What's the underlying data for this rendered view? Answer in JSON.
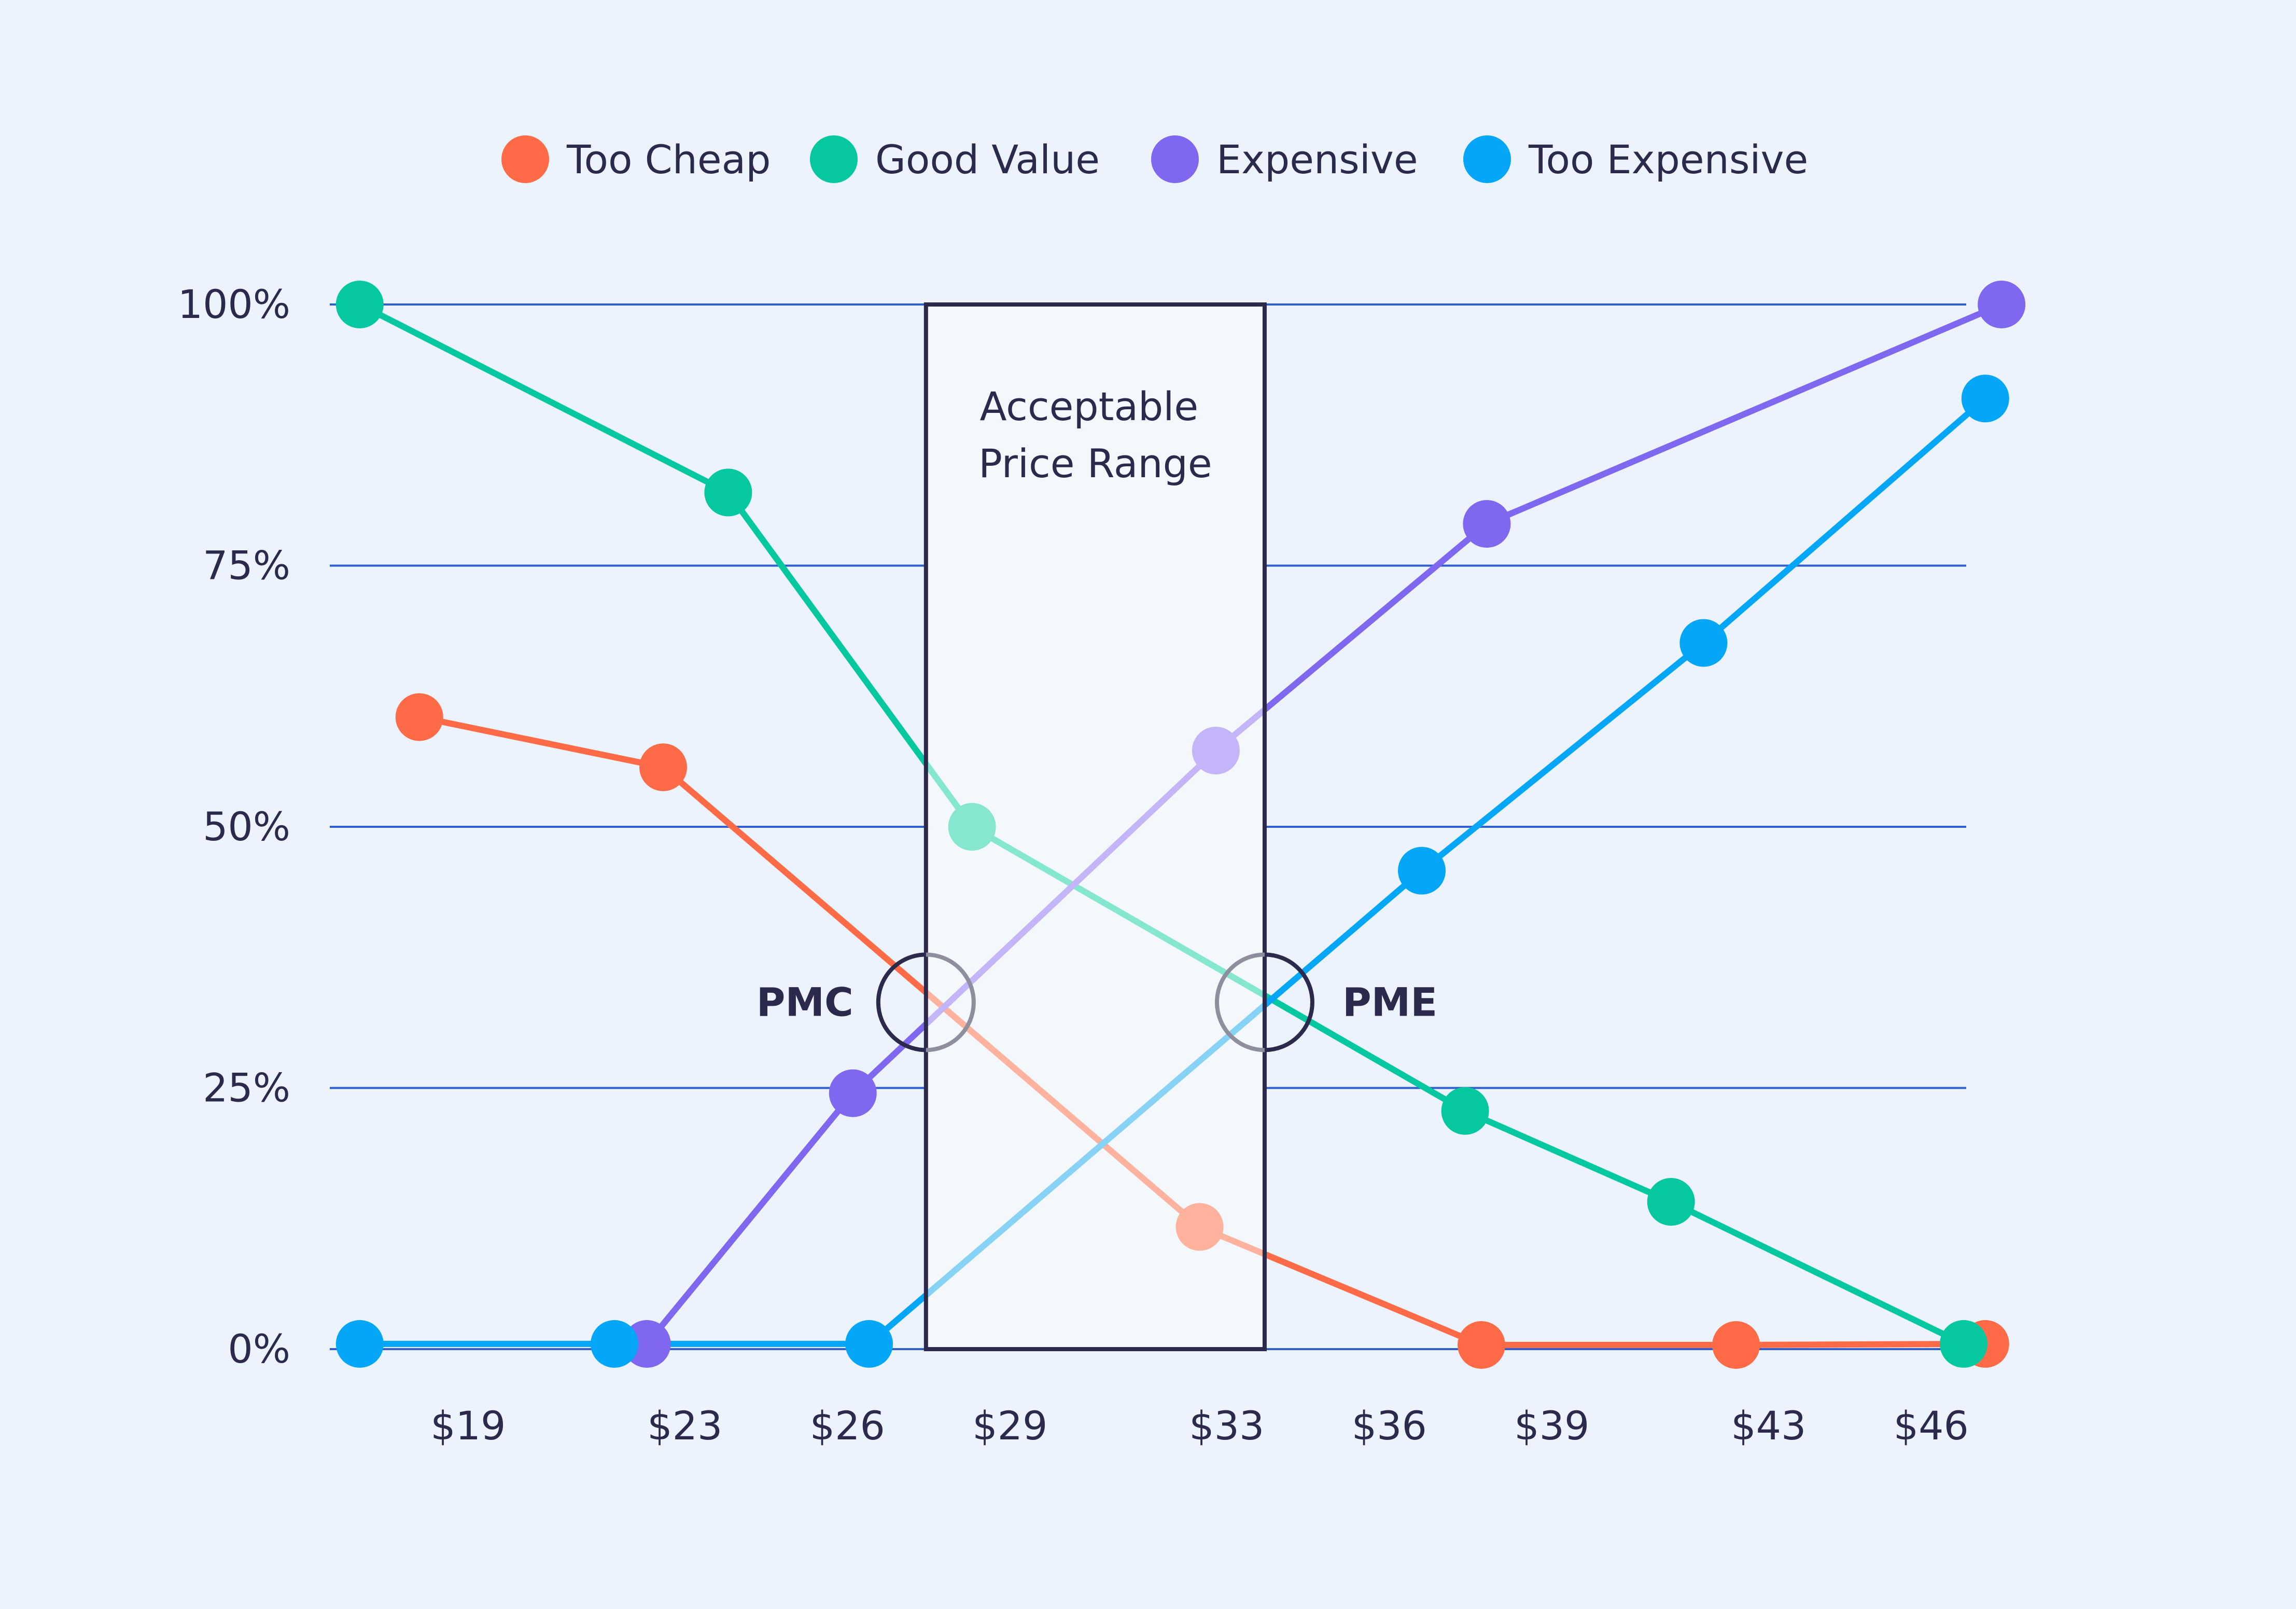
{
  "chart_data": {
    "type": "line",
    "title": "",
    "xlabel": "",
    "ylabel": "",
    "x_tick_labels": [
      "$19",
      "$23",
      "$26",
      "$29",
      "$33",
      "$36",
      "$39",
      "$43",
      "$46"
    ],
    "x_tick_values": [
      19,
      23,
      26,
      29,
      33,
      36,
      39,
      43,
      46
    ],
    "y_tick_labels": [
      "0%",
      "25%",
      "50%",
      "75%",
      "100%"
    ],
    "y_tick_values": [
      0,
      25,
      50,
      75,
      100
    ],
    "xlim": [
      16.6,
      46.6
    ],
    "ylim": [
      0,
      100
    ],
    "grid": true,
    "legend_position": "top-center",
    "series": [
      {
        "name": "Too Cheap",
        "color": "#FF6B47",
        "faded_color": "#FFB39E",
        "points": [
          {
            "x": 18.1,
            "y": 60.5
          },
          {
            "x": 22.6,
            "y": 55.7
          },
          {
            "x": 32.5,
            "y": 11.7
          },
          {
            "x": 37.7,
            "y": 0.4
          },
          {
            "x": 42.4,
            "y": 0.4
          },
          {
            "x": 47.0,
            "y": 0.5
          }
        ]
      },
      {
        "name": "Good Value",
        "color": "#05C7A0",
        "faded_color": "#86E7D1",
        "points": [
          {
            "x": 17.0,
            "y": 100.0
          },
          {
            "x": 23.8,
            "y": 82.0
          },
          {
            "x": 28.3,
            "y": 50.0
          },
          {
            "x": 37.4,
            "y": 22.8
          },
          {
            "x": 41.2,
            "y": 14.1
          },
          {
            "x": 46.6,
            "y": 0.5
          }
        ]
      },
      {
        "name": "Expensive",
        "color": "#7F67F0",
        "faded_color": "#C3B5F7",
        "points": [
          {
            "x": 22.3,
            "y": 0.5
          },
          {
            "x": 26.1,
            "y": 24.5
          },
          {
            "x": 32.8,
            "y": 57.3
          },
          {
            "x": 37.8,
            "y": 79.0
          },
          {
            "x": 47.3,
            "y": 100.0
          }
        ]
      },
      {
        "name": "Too Expensive",
        "color": "#04A7F8",
        "faded_color": "#86D3F6",
        "points": [
          {
            "x": 17.0,
            "y": 0.5
          },
          {
            "x": 21.7,
            "y": 0.5
          },
          {
            "x": 26.4,
            "y": 0.5
          },
          {
            "x": 36.6,
            "y": 45.8
          },
          {
            "x": 41.8,
            "y": 67.6
          },
          {
            "x": 47.0,
            "y": 91.0
          }
        ]
      }
    ],
    "range_box": {
      "label_line1": "Acceptable",
      "label_line2": "Price Range",
      "x_start": 27.45,
      "x_end": 33.7,
      "y_top": 100,
      "y_bottom": 0
    },
    "annotations": [
      {
        "label": "PMC",
        "x": 27.45,
        "y": 33.2,
        "label_side": "left"
      },
      {
        "label": "PME",
        "x": 33.7,
        "y": 33.2,
        "label_side": "right"
      }
    ]
  }
}
